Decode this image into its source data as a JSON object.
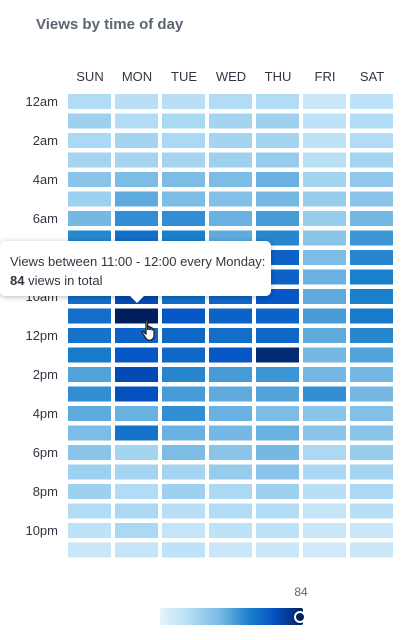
{
  "chart_data": {
    "type": "heatmap",
    "title": "Views by time of day",
    "days": [
      "SUN",
      "MON",
      "TUE",
      "WED",
      "THU",
      "FRI",
      "SAT"
    ],
    "hour_labels": [
      "12am",
      "2am",
      "4am",
      "6am",
      "8am",
      "10am",
      "12pm",
      "2pm",
      "4pm",
      "6pm",
      "8pm",
      "10pm"
    ],
    "hours": [
      "00",
      "01",
      "02",
      "03",
      "04",
      "05",
      "06",
      "07",
      "08",
      "09",
      "10",
      "11",
      "12",
      "13",
      "14",
      "15",
      "16",
      "17",
      "18",
      "19",
      "20",
      "21",
      "22",
      "23"
    ],
    "values": [
      [
        18,
        16,
        16,
        18,
        18,
        10,
        14
      ],
      [
        24,
        18,
        20,
        22,
        24,
        14,
        18
      ],
      [
        20,
        22,
        20,
        22,
        22,
        14,
        18
      ],
      [
        22,
        22,
        22,
        24,
        26,
        16,
        22
      ],
      [
        30,
        34,
        34,
        34,
        38,
        22,
        28
      ],
      [
        24,
        40,
        34,
        32,
        36,
        26,
        30
      ],
      [
        36,
        48,
        48,
        38,
        44,
        26,
        36
      ],
      [
        50,
        58,
        52,
        40,
        50,
        30,
        46
      ],
      [
        52,
        62,
        60,
        50,
        62,
        34,
        50
      ],
      [
        52,
        64,
        64,
        56,
        62,
        38,
        52
      ],
      [
        58,
        70,
        58,
        60,
        66,
        40,
        52
      ],
      [
        58,
        84,
        66,
        62,
        62,
        44,
        54
      ],
      [
        56,
        62,
        60,
        58,
        60,
        40,
        50
      ],
      [
        54,
        66,
        60,
        66,
        80,
        36,
        42
      ],
      [
        42,
        70,
        50,
        44,
        46,
        36,
        36
      ],
      [
        48,
        68,
        44,
        40,
        42,
        48,
        36
      ],
      [
        40,
        38,
        48,
        38,
        34,
        30,
        32
      ],
      [
        34,
        56,
        38,
        36,
        38,
        30,
        30
      ],
      [
        30,
        22,
        34,
        30,
        36,
        20,
        26
      ],
      [
        24,
        22,
        22,
        26,
        30,
        20,
        22
      ],
      [
        24,
        18,
        24,
        20,
        24,
        16,
        20
      ],
      [
        18,
        20,
        16,
        18,
        18,
        12,
        16
      ],
      [
        14,
        20,
        12,
        14,
        14,
        10,
        10
      ],
      [
        10,
        12,
        14,
        10,
        10,
        8,
        10
      ]
    ],
    "color_min": "#e7f3fd",
    "color_max": "#001f5c",
    "scale_max": 84
  },
  "tooltip": {
    "line1": "Views between 11:00 - 12:00 every Monday:",
    "count": "84",
    "line2_suffix": " views in total"
  },
  "legend": {
    "max_label": "84"
  }
}
